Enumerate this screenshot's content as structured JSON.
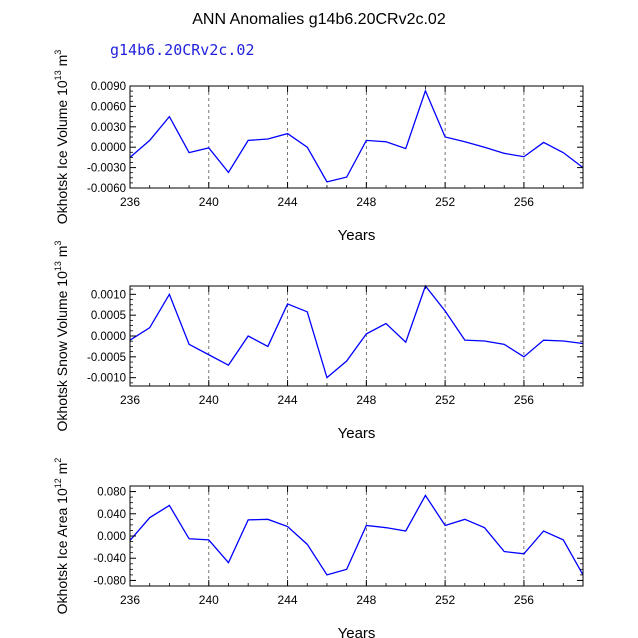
{
  "title": "ANN Anomalies g14b6.20CRv2c.02",
  "case_label": "g14b6.20CRv2c.02",
  "line_color": "#0000ff",
  "chart_data": [
    {
      "type": "line",
      "ylabel": "Okhotsk Ice Volume 10",
      "ylabel_exp": "13",
      "ylabel_unit": "m",
      "ylabel_unit_exp": "3",
      "xlabel": "Years",
      "xlim": [
        236,
        259
      ],
      "ylim": [
        -0.006,
        0.009
      ],
      "xticks": [
        236,
        240,
        244,
        248,
        252,
        256
      ],
      "xtick_labels": [
        "236",
        "240",
        "244",
        "248",
        "252",
        "256"
      ],
      "yticks": [
        0.009,
        0.006,
        0.003,
        0.0,
        -0.003,
        -0.006
      ],
      "ytick_labels": [
        "0.0090",
        "0.0060",
        "0.0030",
        "0.0000",
        "-0.0030",
        "-0.0060"
      ],
      "x": [
        236,
        237,
        238,
        239,
        240,
        241,
        242,
        243,
        244,
        245,
        246,
        247,
        248,
        249,
        250,
        251,
        252,
        253,
        254,
        255,
        256,
        257,
        258,
        259
      ],
      "values": [
        -0.0015,
        0.001,
        0.0045,
        -0.0008,
        -0.0001,
        -0.0037,
        0.001,
        0.0012,
        0.002,
        0.0,
        -0.0051,
        -0.0044,
        0.001,
        0.0008,
        -0.0002,
        0.0083,
        0.0015,
        0.0008,
        0.0,
        -0.0009,
        -0.0014,
        0.0007,
        -0.0008,
        -0.003
      ]
    },
    {
      "type": "line",
      "ylabel": "Okhotsk Snow Volume 10",
      "ylabel_exp": "13",
      "ylabel_unit": "m",
      "ylabel_unit_exp": "3",
      "xlabel": "Years",
      "xlim": [
        236,
        259
      ],
      "ylim": [
        -0.0012,
        0.0012
      ],
      "xticks": [
        236,
        240,
        244,
        248,
        252,
        256
      ],
      "xtick_labels": [
        "236",
        "240",
        "244",
        "248",
        "252",
        "256"
      ],
      "yticks": [
        0.001,
        0.0005,
        0.0,
        -0.0005,
        -0.001
      ],
      "ytick_labels": [
        "0.0010",
        "0.0005",
        "0.0000",
        "-0.0005",
        "-0.0010"
      ],
      "x": [
        236,
        237,
        238,
        239,
        240,
        241,
        242,
        243,
        244,
        245,
        246,
        247,
        248,
        249,
        250,
        251,
        252,
        253,
        254,
        255,
        256,
        257,
        258,
        259
      ],
      "values": [
        -0.0001,
        0.0002,
        0.001,
        -0.0002,
        -0.00045,
        -0.0007,
        0.0,
        -0.00025,
        0.00077,
        0.00058,
        -0.001,
        -0.0006,
        5e-05,
        0.0003,
        -0.00015,
        0.0012,
        0.0006,
        -0.0001,
        -0.00012,
        -0.0002,
        -0.0005,
        -0.0001,
        -0.00012,
        -0.00018
      ]
    },
    {
      "type": "line",
      "ylabel": "Okhotsk Ice Area 10",
      "ylabel_exp": "12",
      "ylabel_unit": "m",
      "ylabel_unit_exp": "2",
      "xlabel": "Years",
      "xlim": [
        236,
        259
      ],
      "ylim": [
        -0.09,
        0.09
      ],
      "xticks": [
        236,
        240,
        244,
        248,
        252,
        256
      ],
      "xtick_labels": [
        "236",
        "240",
        "244",
        "248",
        "252",
        "256"
      ],
      "yticks": [
        0.08,
        0.04,
        0.0,
        -0.04,
        -0.08
      ],
      "ytick_labels": [
        "0.080",
        "0.040",
        "0.000",
        "-0.040",
        "-0.080"
      ],
      "x": [
        236,
        237,
        238,
        239,
        240,
        241,
        242,
        243,
        244,
        245,
        246,
        247,
        248,
        249,
        250,
        251,
        252,
        253,
        254,
        255,
        256,
        257,
        258,
        259
      ],
      "values": [
        -0.008,
        0.033,
        0.055,
        -0.005,
        -0.007,
        -0.048,
        0.029,
        0.03,
        0.017,
        -0.015,
        -0.07,
        -0.06,
        0.019,
        0.015,
        0.009,
        0.073,
        0.019,
        0.03,
        0.015,
        -0.028,
        -0.032,
        0.009,
        -0.007,
        -0.07
      ]
    }
  ]
}
